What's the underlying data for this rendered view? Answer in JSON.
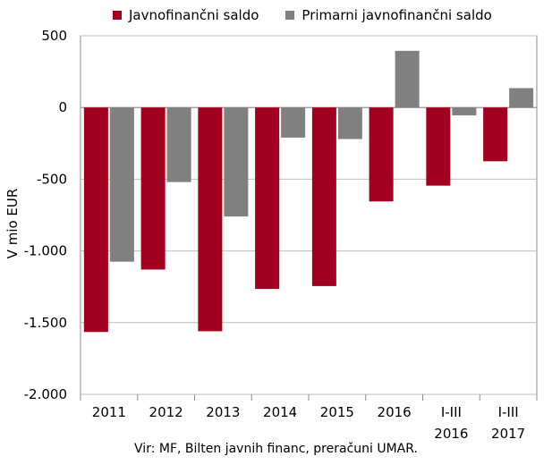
{
  "chart_data": {
    "type": "bar",
    "categories": [
      [
        "2011"
      ],
      [
        "2012"
      ],
      [
        "2013"
      ],
      [
        "2014"
      ],
      [
        "2015"
      ],
      [
        "2016"
      ],
      [
        "I-III",
        "2016"
      ],
      [
        "I-III",
        "2017"
      ]
    ],
    "series": [
      {
        "name": "Javnofinančni saldo",
        "color": "#a1001f",
        "values": [
          -1565,
          -1130,
          -1560,
          -1265,
          -1245,
          -655,
          -545,
          -375
        ]
      },
      {
        "name": "Primarni javnofinančni saldo",
        "color": "#808080",
        "values": [
          -1075,
          -520,
          -760,
          -210,
          -220,
          395,
          -55,
          135
        ]
      }
    ],
    "ylabel": "V mio EUR",
    "ylim": [
      -2000,
      500
    ],
    "yticks": [
      500,
      0,
      -500,
      -1000,
      -1500,
      -2000
    ],
    "ytick_labels": [
      "500",
      "0",
      "-500",
      "-1.000",
      "-1.500",
      "-2.000"
    ],
    "grid": true,
    "legend": "top"
  },
  "source_note": "Vir: MF, Bilten javnih financ, preračuni UMAR."
}
